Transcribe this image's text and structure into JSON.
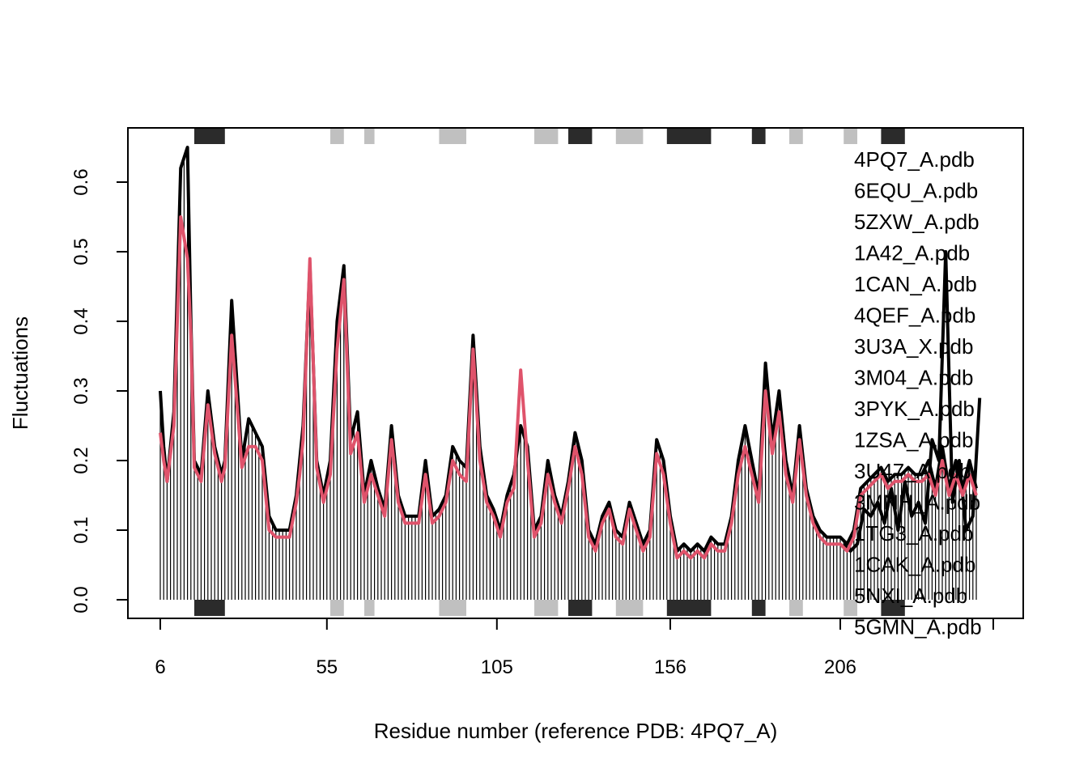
{
  "chart_data": {
    "type": "line",
    "title": "",
    "xlabel": "Residue number (reference PDB: 4PQ7_A)",
    "ylabel": "Fluctuations",
    "xlim": [
      6,
      251
    ],
    "ylim": [
      0,
      0.65
    ],
    "x_ticks": [
      6,
      55,
      105,
      156,
      206
    ],
    "x_tick_labels": [
      "6",
      "55",
      "105",
      "156",
      "206"
    ],
    "y_ticks": [
      0.0,
      0.1,
      0.2,
      0.3,
      0.4,
      0.5,
      0.6
    ],
    "y_tick_labels": [
      "0.0",
      "0.1",
      "0.2",
      "0.3",
      "0.4",
      "0.5",
      "0.6"
    ],
    "grid": false,
    "legend_position": "right, overlapping plot",
    "legend_entries": [
      "4PQ7_A.pdb",
      "6EQU_A.pdb",
      "5ZXW_A.pdb",
      "1A42_A.pdb",
      "1CAN_A.pdb",
      "4QEF_A.pdb",
      "3U3A_X.pdb",
      "3M04_A.pdb",
      "3PYK_A.pdb",
      "1ZSA_A.pdb",
      "3U47_A.pdb",
      "3MNH_A.pdb",
      "1TG3_A.pdb",
      "1CAK_A.pdb",
      "5NXI_A.pdb",
      "5GMN_A.pdb"
    ],
    "colors": {
      "envelope": "#000000",
      "highlight": "#df536b",
      "helix": "#2b2b2b",
      "strand": "#c0c0c0"
    },
    "secondary_structure": {
      "helix_residues": [
        [
          16,
          25
        ],
        [
          126,
          133
        ],
        [
          155,
          168
        ],
        [
          180,
          184
        ],
        [
          218,
          225
        ]
      ],
      "strand_residues": [
        [
          56,
          60
        ],
        [
          66,
          69
        ],
        [
          88,
          96
        ],
        [
          116,
          123
        ],
        [
          140,
          148
        ],
        [
          191,
          195
        ],
        [
          207,
          211
        ]
      ]
    },
    "x": [
      6,
      7,
      8,
      10,
      12,
      14,
      15,
      16,
      18,
      20,
      22,
      24,
      25,
      27,
      30,
      32,
      34,
      36,
      38,
      40,
      42,
      44,
      46,
      47,
      48,
      50,
      52,
      54,
      56,
      58,
      60,
      62,
      64,
      66,
      68,
      70,
      72,
      74,
      76,
      78,
      80,
      82,
      84,
      86,
      88,
      90,
      92,
      94,
      96,
      98,
      100,
      102,
      104,
      106,
      108,
      110,
      112,
      114,
      116,
      118,
      120,
      122,
      124,
      126,
      128,
      130,
      132,
      134,
      136,
      138,
      140,
      142,
      144,
      146,
      148,
      150,
      152,
      154,
      156,
      158,
      160,
      162,
      164,
      166,
      168,
      170,
      172,
      174,
      176,
      178,
      180,
      182,
      184,
      186,
      188,
      190,
      192,
      194,
      196,
      198,
      200,
      202,
      204,
      206,
      208,
      210,
      212,
      214,
      216,
      218,
      220,
      222,
      224,
      226,
      228,
      230,
      232,
      234,
      236,
      238,
      240,
      242,
      244,
      246
    ],
    "series": [
      {
        "values": [
          0.3,
          0.22,
          0.17,
          0.27,
          0.62,
          0.65,
          0.4,
          0.2,
          0.18,
          0.3,
          0.22,
          0.18,
          0.2,
          0.43,
          0.2,
          0.26,
          0.24,
          0.22,
          0.12,
          0.1,
          0.1,
          0.1,
          0.15,
          0.2,
          0.25,
          0.48,
          0.2,
          0.15,
          0.2,
          0.4,
          0.48,
          0.23,
          0.27,
          0.15,
          0.2,
          0.16,
          0.13,
          0.25,
          0.15,
          0.12,
          0.12,
          0.12,
          0.2,
          0.12,
          0.13,
          0.15,
          0.22,
          0.2,
          0.19,
          0.38,
          0.22,
          0.15,
          0.13,
          0.1,
          0.15,
          0.18,
          0.25,
          0.22,
          0.1,
          0.12,
          0.2,
          0.15,
          0.12,
          0.17,
          0.24,
          0.2,
          0.1,
          0.08,
          0.12,
          0.14,
          0.1,
          0.09,
          0.14,
          0.11,
          0.08,
          0.1,
          0.23,
          0.2,
          0.12,
          0.07,
          0.08,
          0.07,
          0.08,
          0.07,
          0.09,
          0.08,
          0.08,
          0.12,
          0.2,
          0.25,
          0.2,
          0.15,
          0.34,
          0.23,
          0.3,
          0.2,
          0.15,
          0.25,
          0.16,
          0.12,
          0.1,
          0.09,
          0.09,
          0.09,
          0.08,
          0.1,
          0.16,
          0.17,
          0.18,
          0.19,
          0.17,
          0.18,
          0.18,
          0.19,
          0.18,
          0.18,
          0.2,
          0.16,
          0.22,
          0.16,
          0.2,
          0.16,
          0.2,
          0.16
        ]
      },
      {
        "values": [
          0.24,
          0.2,
          0.17,
          0.25,
          0.55,
          0.49,
          0.38,
          0.19,
          0.17,
          0.28,
          0.21,
          0.17,
          0.19,
          0.38,
          0.19,
          0.22,
          0.22,
          0.2,
          0.1,
          0.09,
          0.09,
          0.09,
          0.14,
          0.18,
          0.23,
          0.49,
          0.19,
          0.14,
          0.18,
          0.36,
          0.46,
          0.21,
          0.24,
          0.14,
          0.18,
          0.15,
          0.12,
          0.23,
          0.14,
          0.11,
          0.11,
          0.11,
          0.18,
          0.11,
          0.12,
          0.14,
          0.2,
          0.18,
          0.17,
          0.36,
          0.2,
          0.14,
          0.12,
          0.09,
          0.14,
          0.16,
          0.33,
          0.2,
          0.09,
          0.11,
          0.18,
          0.14,
          0.11,
          0.16,
          0.22,
          0.18,
          0.09,
          0.07,
          0.11,
          0.13,
          0.09,
          0.08,
          0.13,
          0.1,
          0.07,
          0.09,
          0.21,
          0.18,
          0.11,
          0.06,
          0.07,
          0.06,
          0.07,
          0.06,
          0.08,
          0.07,
          0.07,
          0.11,
          0.18,
          0.22,
          0.18,
          0.14,
          0.3,
          0.21,
          0.27,
          0.18,
          0.14,
          0.23,
          0.15,
          0.11,
          0.09,
          0.08,
          0.08,
          0.08,
          0.07,
          0.09,
          0.15,
          0.16,
          0.17,
          0.18,
          0.16,
          0.17,
          0.17,
          0.18,
          0.17,
          0.17,
          0.18,
          0.15,
          0.2,
          0.15,
          0.18,
          0.15,
          0.18,
          0.15
        ]
      }
    ],
    "tail_x": [
      207,
      209,
      211,
      213,
      215,
      217,
      219,
      221,
      223,
      225,
      227,
      229,
      231,
      233,
      235,
      237,
      239,
      241,
      243,
      245,
      247
    ],
    "tail_values": [
      0.08,
      0.07,
      0.08,
      0.13,
      0.12,
      0.14,
      0.11,
      0.16,
      0.1,
      0.17,
      0.12,
      0.14,
      0.11,
      0.23,
      0.2,
      0.5,
      0.14,
      0.2,
      0.1,
      0.12,
      0.29
    ]
  }
}
